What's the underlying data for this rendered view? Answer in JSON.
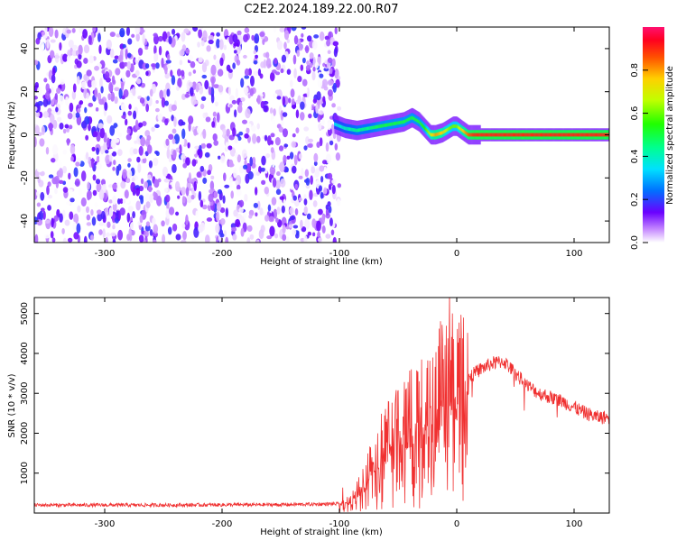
{
  "title": "C2E2.2024.189.22.00.R07",
  "chart_data": [
    {
      "type": "heatmap",
      "xlabel": "Height of straight line (km)",
      "ylabel": "Frequency (Hz)",
      "xlim": [
        -360,
        130
      ],
      "ylim": [
        -50,
        50
      ],
      "xticks": [
        -300,
        -200,
        -100,
        0,
        100
      ],
      "yticks": [
        -40,
        -20,
        0,
        20,
        40
      ],
      "noise_region": {
        "x": [
          -360,
          -100
        ],
        "y": [
          -50,
          50
        ],
        "amplitude_range": [
          0.0,
          0.2
        ]
      },
      "signal_track": {
        "x": [
          -104,
          -95,
          -85,
          -75,
          -65,
          -55,
          -45,
          -38,
          -32,
          -27,
          -22,
          -18,
          -12,
          -6,
          -3,
          0,
          5,
          10,
          15,
          30,
          60,
          100,
          130
        ],
        "y": [
          5,
          3,
          2,
          3,
          4,
          5,
          6,
          8,
          6,
          3,
          0,
          0,
          1,
          3,
          4,
          4,
          2,
          0,
          0,
          0,
          0,
          0,
          0
        ],
        "amplitude": [
          0.35,
          0.4,
          0.45,
          0.45,
          0.5,
          0.5,
          0.5,
          0.5,
          0.5,
          0.55,
          0.7,
          0.8,
          0.75,
          0.6,
          0.6,
          0.6,
          0.75,
          0.85,
          0.9,
          0.9,
          0.9,
          0.9,
          0.9
        ]
      },
      "colorbar": {
        "label": "Normalized spectral amplitude",
        "range": [
          0.0,
          1.0
        ],
        "ticks": [
          "0.0",
          "0.2",
          "0.4",
          "0.6",
          "0.8"
        ]
      }
    },
    {
      "type": "line",
      "xlabel": "Height of straight line (km)",
      "ylabel": "SNR (10 * v/v)",
      "xlim": [
        -360,
        130
      ],
      "ylim": [
        0,
        5400
      ],
      "xticks": [
        -300,
        -200,
        -100,
        0,
        100
      ],
      "yticks": [
        1000,
        2000,
        3000,
        4000,
        5000
      ],
      "series": [
        {
          "color": "#f03030",
          "x": [
            -360,
            -250,
            -150,
            -100,
            -90,
            -80,
            -75,
            -70,
            -60,
            -50,
            -40,
            -30,
            -20,
            -10,
            0,
            10,
            20,
            30,
            40,
            50,
            60,
            70,
            80,
            90,
            100,
            110,
            120,
            130
          ],
          "y": [
            200,
            200,
            210,
            230,
            300,
            700,
            1100,
            1400,
            1700,
            2000,
            2200,
            2400,
            2700,
            3000,
            3200,
            3400,
            3600,
            3750,
            3800,
            3500,
            3200,
            3000,
            2900,
            2800,
            2650,
            2500,
            2400,
            2400
          ]
        }
      ]
    }
  ]
}
